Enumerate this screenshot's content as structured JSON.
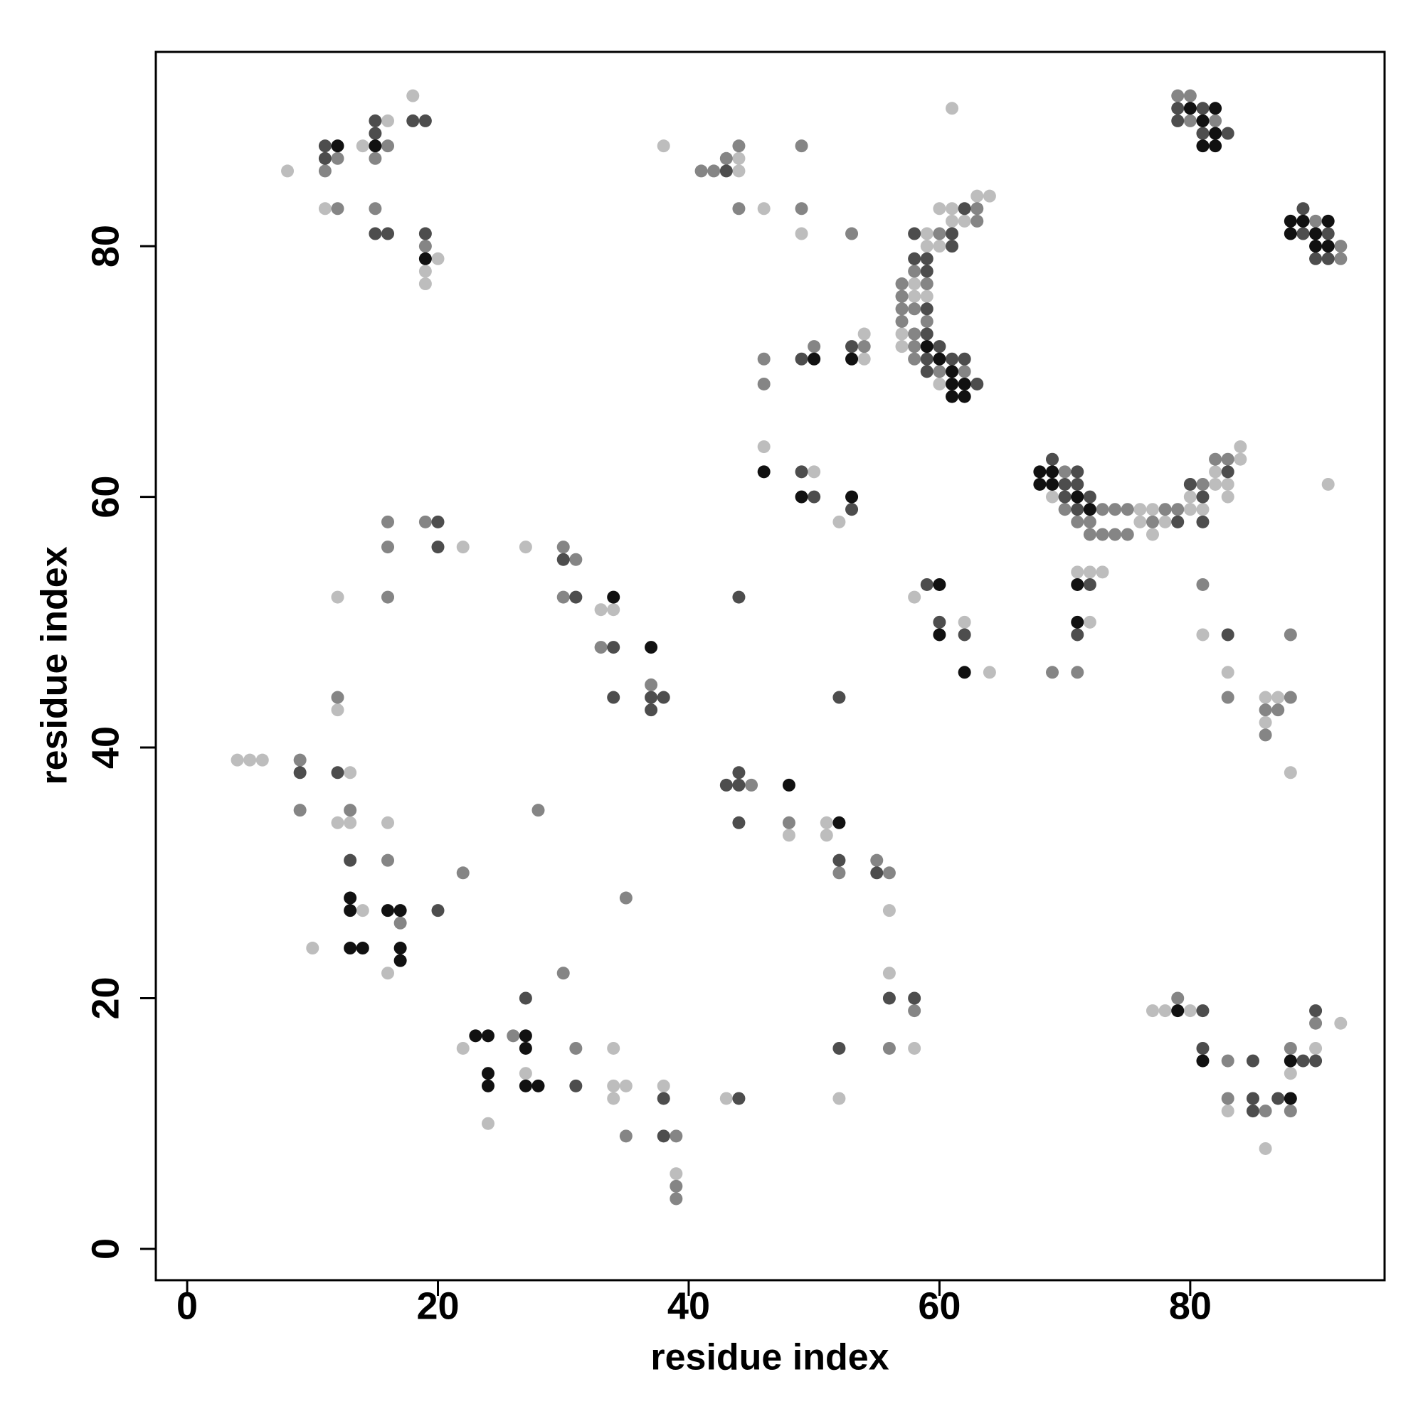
{
  "chart_data": {
    "type": "scatter",
    "xlabel": "residue index",
    "ylabel": "residue index",
    "xlim": [
      -2.5,
      95.5
    ],
    "ylim": [
      -2.5,
      95.5
    ],
    "xticks": [
      0,
      20,
      40,
      60,
      80
    ],
    "yticks": [
      0,
      20,
      40,
      60,
      80
    ],
    "series": [
      {
        "color": "#bdbdbd",
        "x": [
          8,
          11,
          14,
          16,
          18,
          19,
          19,
          20,
          38,
          44,
          44,
          46,
          49,
          61,
          60,
          61,
          63,
          64,
          62,
          61,
          59,
          59,
          60,
          58,
          58,
          59,
          57,
          57,
          60,
          54,
          54,
          46,
          50,
          52,
          69,
          76,
          77,
          76,
          78,
          77,
          80,
          80,
          81,
          82,
          82,
          83,
          83,
          84,
          84,
          91,
          12,
          22,
          27,
          33,
          34,
          58,
          62,
          64,
          71,
          72,
          73,
          72,
          81,
          83,
          86,
          87,
          86,
          88,
          4,
          5,
          6,
          12,
          13,
          12,
          13,
          16,
          14,
          10,
          16,
          48,
          51,
          51,
          56,
          22,
          27,
          24,
          34,
          34,
          35,
          34,
          38,
          39,
          43,
          52,
          56,
          58,
          77,
          78,
          80,
          83,
          86,
          88,
          90,
          92
        ],
        "y": [
          86,
          83,
          88,
          90,
          92,
          78,
          77,
          79,
          88,
          87,
          86,
          83,
          81,
          91,
          83,
          83,
          84,
          84,
          82,
          82,
          81,
          80,
          80,
          77,
          76,
          76,
          73,
          72,
          69,
          71,
          73,
          64,
          62,
          58,
          60,
          59,
          59,
          58,
          58,
          57,
          60,
          59,
          59,
          62,
          61,
          61,
          60,
          64,
          63,
          61,
          52,
          56,
          56,
          51,
          51,
          52,
          50,
          46,
          54,
          54,
          54,
          50,
          49,
          46,
          44,
          44,
          42,
          38,
          39,
          39,
          39,
          43,
          38,
          34,
          34,
          34,
          27,
          24,
          22,
          33,
          34,
          33,
          27,
          16,
          14,
          10,
          16,
          13,
          13,
          12,
          13,
          6,
          12,
          12,
          22,
          16,
          19,
          19,
          19,
          11,
          8,
          14,
          16,
          18
        ]
      },
      {
        "color": "#858585",
        "x": [
          11,
          12,
          12,
          15,
          16,
          15,
          19,
          41,
          42,
          43,
          44,
          44,
          49,
          49,
          53,
          63,
          63,
          60,
          58,
          57,
          59,
          57,
          57,
          58,
          57,
          59,
          58,
          58,
          58,
          60,
          62,
          46,
          46,
          50,
          54,
          79,
          80,
          80,
          82,
          90,
          92,
          92,
          70,
          70,
          73,
          74,
          75,
          78,
          79,
          71,
          72,
          77,
          72,
          73,
          74,
          75,
          81,
          82,
          83,
          16,
          16,
          16,
          19,
          30,
          31,
          30,
          33,
          37,
          81,
          83,
          88,
          88,
          86,
          87,
          86,
          69,
          71,
          9,
          9,
          12,
          13,
          16,
          17,
          22,
          28,
          35,
          45,
          48,
          52,
          55,
          56,
          30,
          26,
          31,
          35,
          39,
          39,
          39,
          58,
          56,
          79,
          83,
          83,
          86,
          88,
          90,
          88
        ],
        "y": [
          86,
          87,
          83,
          87,
          88,
          83,
          80,
          86,
          86,
          87,
          88,
          83,
          88,
          83,
          81,
          83,
          82,
          81,
          78,
          77,
          77,
          76,
          75,
          75,
          74,
          74,
          73,
          72,
          71,
          70,
          70,
          71,
          69,
          72,
          72,
          92,
          92,
          90,
          90,
          82,
          80,
          79,
          62,
          59,
          59,
          59,
          59,
          59,
          59,
          58,
          58,
          58,
          57,
          57,
          57,
          57,
          61,
          63,
          63,
          58,
          56,
          52,
          58,
          56,
          55,
          52,
          48,
          45,
          53,
          44,
          49,
          44,
          43,
          43,
          41,
          46,
          46,
          39,
          35,
          44,
          35,
          31,
          26,
          30,
          35,
          28,
          37,
          34,
          30,
          31,
          30,
          22,
          17,
          16,
          9,
          9,
          5,
          4,
          19,
          16,
          20,
          15,
          12,
          11,
          16,
          18,
          11
        ]
      },
      {
        "color": "#4d4d4d",
        "x": [
          11,
          11,
          15,
          15,
          15,
          16,
          18,
          19,
          19,
          43,
          62,
          58,
          61,
          61,
          58,
          59,
          59,
          59,
          59,
          60,
          59,
          61,
          62,
          59,
          63,
          49,
          53,
          49,
          50,
          53,
          79,
          81,
          79,
          81,
          83,
          89,
          89,
          91,
          90,
          91,
          69,
          71,
          70,
          71,
          70,
          72,
          71,
          79,
          80,
          81,
          81,
          83,
          20,
          20,
          30,
          31,
          34,
          37,
          38,
          37,
          34,
          44,
          59,
          60,
          62,
          72,
          71,
          83,
          9,
          12,
          13,
          20,
          43,
          44,
          44,
          44,
          52,
          55,
          52,
          27,
          31,
          38,
          38,
          44,
          52,
          56,
          58,
          81,
          81,
          85,
          85,
          85,
          89,
          90,
          90,
          87
        ],
        "y": [
          88,
          87,
          90,
          89,
          81,
          81,
          90,
          90,
          81,
          86,
          83,
          81,
          81,
          80,
          79,
          79,
          78,
          75,
          73,
          72,
          71,
          71,
          71,
          70,
          69,
          71,
          72,
          62,
          60,
          59,
          91,
          91,
          90,
          89,
          89,
          83,
          81,
          81,
          79,
          79,
          63,
          62,
          61,
          61,
          60,
          60,
          59,
          58,
          61,
          60,
          58,
          62,
          58,
          56,
          55,
          52,
          48,
          44,
          44,
          43,
          44,
          52,
          53,
          50,
          49,
          53,
          49,
          49,
          38,
          38,
          31,
          27,
          37,
          37,
          38,
          34,
          31,
          30,
          44,
          20,
          13,
          12,
          9,
          12,
          16,
          20,
          20,
          19,
          16,
          15,
          12,
          11,
          15,
          15,
          19,
          12
        ]
      },
      {
        "color": "#111111",
        "x": [
          12,
          15,
          19,
          59,
          60,
          61,
          61,
          62,
          61,
          62,
          50,
          53,
          46,
          49,
          53,
          80,
          82,
          81,
          82,
          81,
          82,
          88,
          89,
          91,
          88,
          90,
          90,
          91,
          68,
          69,
          68,
          69,
          71,
          72,
          34,
          37,
          60,
          60,
          62,
          71,
          71,
          13,
          13,
          16,
          17,
          13,
          14,
          17,
          17,
          48,
          52,
          23,
          24,
          27,
          27,
          24,
          24,
          27,
          28,
          79,
          81,
          88,
          88
        ],
        "y": [
          88,
          88,
          79,
          72,
          71,
          70,
          69,
          69,
          68,
          68,
          71,
          71,
          62,
          60,
          60,
          91,
          91,
          90,
          89,
          88,
          88,
          82,
          82,
          82,
          81,
          81,
          80,
          80,
          62,
          62,
          61,
          61,
          60,
          59,
          52,
          48,
          53,
          49,
          46,
          53,
          50,
          28,
          27,
          27,
          27,
          24,
          24,
          24,
          23,
          37,
          34,
          17,
          17,
          17,
          16,
          14,
          13,
          13,
          13,
          19,
          15,
          15,
          12
        ]
      }
    ]
  }
}
